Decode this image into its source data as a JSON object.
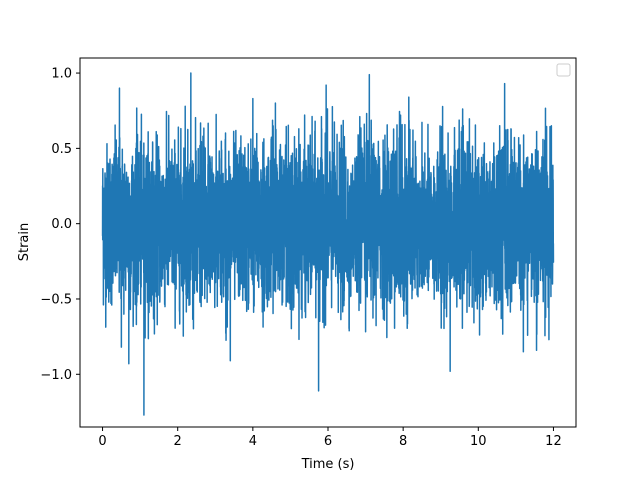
{
  "chart_data": {
    "type": "line",
    "title": "",
    "xlabel": "Time (s)",
    "ylabel": "Strain",
    "xlim": [
      -0.6,
      12.6
    ],
    "ylim": [
      -1.35,
      1.1
    ],
    "x_ticks": [
      0,
      2,
      4,
      6,
      8,
      10,
      12
    ],
    "x_tick_labels": [
      "0",
      "2",
      "4",
      "6",
      "8",
      "10",
      "12"
    ],
    "y_ticks": [
      -1.0,
      -0.5,
      0.0,
      0.5,
      1.0
    ],
    "y_tick_labels": [
      "−1.0",
      "−0.5",
      "0.0",
      "0.5",
      "1.0"
    ],
    "grid": false,
    "legend": {
      "placement": "upper right",
      "entries": []
    },
    "series": [
      {
        "color": "#1f77b4",
        "x_range": [
          0,
          12
        ],
        "typical_envelope": [
          -0.55,
          0.55
        ],
        "max": 1.0,
        "min": -1.27,
        "spikes": [
          {
            "x": 0.45,
            "y": 0.9
          },
          {
            "x": 0.5,
            "y": -0.82
          },
          {
            "x": 0.7,
            "y": -0.93
          },
          {
            "x": 1.1,
            "y": -1.27
          },
          {
            "x": 2.35,
            "y": 1.0
          },
          {
            "x": 2.2,
            "y": 0.78
          },
          {
            "x": 3.4,
            "y": -0.91
          },
          {
            "x": 4.0,
            "y": 0.83
          },
          {
            "x": 4.6,
            "y": 0.8
          },
          {
            "x": 5.75,
            "y": -1.11
          },
          {
            "x": 5.95,
            "y": 0.92
          },
          {
            "x": 7.1,
            "y": 0.99
          },
          {
            "x": 8.15,
            "y": 0.84
          },
          {
            "x": 9.25,
            "y": -0.98
          },
          {
            "x": 10.7,
            "y": 0.93
          },
          {
            "x": 11.2,
            "y": -0.85
          },
          {
            "x": 11.55,
            "y": -0.84
          }
        ]
      }
    ]
  }
}
